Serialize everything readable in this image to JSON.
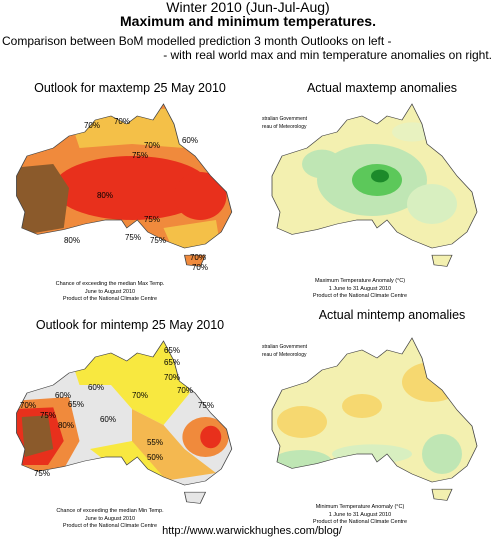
{
  "header": {
    "title": "Winter 2010  (Jun-Jul-Aug)",
    "subtitle": "Maximum and minimum temperatures.",
    "lines": [
      "Comparison between BoM modelled prediction 3 month Outlooks on left -",
      "- with real world max and min temperature anomalies on right."
    ]
  },
  "panels": [
    {
      "title": "Outlook for maxtemp 25 May 2010",
      "labels": [
        "70%",
        "70%",
        "60%",
        "75%",
        "70%",
        "80%",
        "75%",
        "80%",
        "75%",
        "75%",
        "70%",
        "70%"
      ],
      "captions": [
        "Chance of exceeding the median Max Temp.",
        "June to August 2010",
        "Product of the National Climate Centre"
      ]
    },
    {
      "title": "Actual maxtemp anomalies",
      "agency": [
        "stralian Government",
        "reau of Meteorology"
      ],
      "captions": [
        "Maximum Temperature Anomaly (°C)",
        "1 June to 31 August 2010",
        "Product of the National Climate Centre"
      ]
    },
    {
      "title": "Outlook for mintemp 25 May 2010",
      "labels": [
        "65%",
        "60%",
        "65%",
        "70%",
        "70%",
        "60%",
        "65%",
        "70%",
        "75%",
        "70%",
        "75%",
        "80%",
        "60%",
        "55%",
        "50%",
        "75%"
      ],
      "captions": [
        "Chance of exceeding the median Min Temp.",
        "June to August 2010",
        "Product of the National Climate Centre"
      ]
    },
    {
      "title": "Actual mintemp anomalies",
      "agency": [
        "stralian Government",
        "reau of Meteorology"
      ],
      "captions": [
        "Minimum Temperature Anomaly (°C)",
        "1 June to 31 August 2010",
        "Product of the National Climate Centre"
      ]
    }
  ],
  "footer": {
    "url": "http://www.warwickhughes.com/blog/"
  }
}
